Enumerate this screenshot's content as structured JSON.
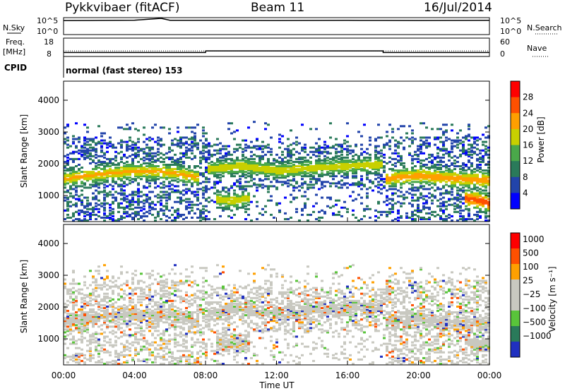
{
  "header": {
    "station": "Pykkvibaer (fitACF)",
    "beam": "Beam 11",
    "date": "16/Jul/2014"
  },
  "nsky_panel": {
    "left_label": "N.Sky",
    "left_ticks": [
      "10^5",
      "10^0"
    ],
    "right_label": "N.Search",
    "right_ticks": [
      "10^5",
      "10^0"
    ]
  },
  "freq_panel": {
    "left_label_1": "Freq.",
    "left_label_2": "[MHz]",
    "left_ticks": [
      "18",
      "8"
    ],
    "right_label": "Nave",
    "right_ticks": [
      "60",
      "0"
    ]
  },
  "cpid": {
    "label": "CPID",
    "text": "normal (fast stereo) 153"
  },
  "power_panel": {
    "ylabel": "Slant Range [km]",
    "yticks": [
      "4000",
      "3000",
      "2000",
      "1000"
    ],
    "colorbar_label": "Power [dB]",
    "colorbar_ticks": [
      "28",
      "24",
      "20",
      "16",
      "12",
      "8",
      "4"
    ],
    "colors": [
      "#0000ff",
      "#2244aa",
      "#2a7a5a",
      "#4aa84a",
      "#c8d000",
      "#ff9f00",
      "#ff5000",
      "#ff0000"
    ]
  },
  "velocity_panel": {
    "ylabel": "Slant Range [km]",
    "yticks": [
      "4000",
      "3000",
      "2000",
      "1000"
    ],
    "colorbar_label": "Velocity  [m s⁻¹]",
    "colorbar_ticks": [
      "1000",
      "500",
      "100",
      "25",
      "−25",
      "−100",
      "−500",
      "−1000"
    ],
    "colors": [
      "#2030c0",
      "#2a7a5a",
      "#59c43a",
      "#c8c8c0",
      "#c8c8c0",
      "#ffa000",
      "#ff5000",
      "#ff0000"
    ]
  },
  "xaxis": {
    "ticks": [
      "00:00",
      "04:00",
      "08:00",
      "12:00",
      "16:00",
      "20:00",
      "00:00"
    ],
    "label": "Time UT"
  },
  "chart_data": [
    {
      "type": "line",
      "title": "N.Sky / N.Search",
      "x": [
        0,
        2,
        4,
        5.5,
        6,
        8,
        10,
        12,
        14,
        16,
        18,
        20,
        22,
        24
      ],
      "series": [
        {
          "name": "N.Sky",
          "values": [
            20000,
            22000,
            25000,
            100000,
            24000,
            23000,
            22000,
            21000,
            22000,
            23000,
            22000,
            21000,
            22000,
            24000
          ]
        }
      ],
      "ylim": [
        1,
        100000
      ],
      "log_scale": true
    },
    {
      "type": "line",
      "title": "Freq. / Nave",
      "x": [
        0,
        2,
        4,
        6,
        8,
        8.01,
        10,
        12,
        14,
        16,
        18,
        18.01,
        20,
        22,
        24
      ],
      "series": [
        {
          "name": "Freq.",
          "values": [
            10,
            10,
            10,
            10,
            10,
            11,
            11,
            11,
            11,
            11,
            11,
            10,
            10,
            10,
            10
          ]
        },
        {
          "name": "Nave",
          "values": [
            18,
            18,
            18,
            18,
            18,
            18,
            18,
            18,
            18,
            18,
            18,
            18,
            18,
            18,
            18
          ]
        }
      ],
      "ylim": [
        8,
        18
      ]
    },
    {
      "type": "heatmap",
      "title": "Power [dB]",
      "xlabel": "Time UT",
      "ylabel": "Slant Range [km]",
      "xlim": [
        0,
        24
      ],
      "ylim": [
        180,
        4600
      ],
      "clim": [
        0,
        32
      ],
      "echo_bands": [
        {
          "t": [
            0,
            2,
            4,
            6,
            7.5
          ],
          "range_km": [
            1500,
            1650,
            1750,
            1700,
            1550
          ],
          "peak_db": 22
        },
        {
          "t": [
            8,
            10,
            12,
            14,
            16,
            17.9
          ],
          "range_km": [
            1800,
            1900,
            1750,
            1850,
            1900,
            1950
          ],
          "peak_db": 20
        },
        {
          "t": [
            18,
            19,
            20,
            22,
            24
          ],
          "range_km": [
            1500,
            1550,
            1600,
            1500,
            1450
          ],
          "peak_db": 24
        },
        {
          "t": [
            8.5,
            9.5,
            10.5
          ],
          "range_km": [
            850,
            800,
            900
          ],
          "peak_db": 20
        },
        {
          "t": [
            22.5,
            23.5,
            24
          ],
          "range_km": [
            900,
            800,
            700
          ],
          "peak_db": 28
        }
      ]
    },
    {
      "type": "heatmap",
      "title": "Velocity [m s-1]",
      "xlabel": "Time UT",
      "ylabel": "Slant Range [km]",
      "xlim": [
        0,
        24
      ],
      "ylim": [
        180,
        4600
      ],
      "clim": [
        -1000,
        1000
      ],
      "dominant_value_ms": 0
    }
  ]
}
